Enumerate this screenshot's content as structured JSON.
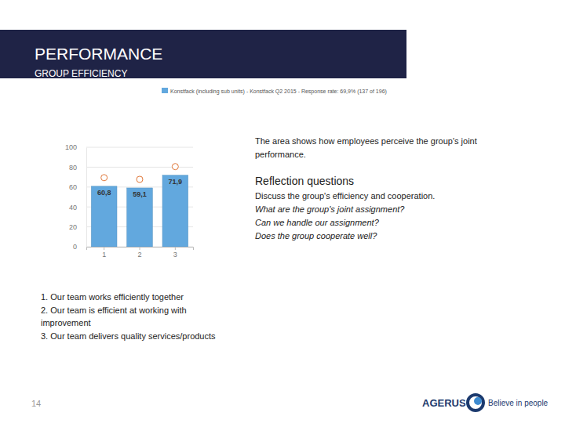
{
  "slide": {
    "header": {
      "title": "PERFORMANCE",
      "subtitle": "GROUP EFFICIENCY"
    },
    "description": [
      "The area shows how employees perceive the group's joint",
      "performance."
    ],
    "reflection": {
      "title": "Reflection questions",
      "lines": [
        "Discuss the group's efficiency and cooperation.",
        "What are the group's joint assignment?",
        "Can we handle our assignment?",
        "Does the group cooperate well?"
      ]
    },
    "list": [
      [
        "1. Our team works efficiently together"
      ],
      [
        "2. Our team is efficient at working with",
        "improvement"
      ],
      [
        "3. Our team delivers quality services/products"
      ]
    ],
    "page_number": "14",
    "logo": {
      "brand": "AGERUS",
      "tagline": "Believe in people"
    }
  },
  "chart_data": {
    "type": "bar",
    "categories": [
      "1",
      "2",
      "3"
    ],
    "series": [
      {
        "name": "Konstfack (including sub units) - Konstfack Q2 2015 - Response rate: 69,9% (137 of 196)",
        "color": "#62a8de",
        "values": [
          60.8,
          59.1,
          71.9
        ],
        "value_labels": [
          "60,8",
          "59,1",
          "71,9"
        ]
      }
    ],
    "ylim": [
      0,
      100
    ],
    "yticks": [
      0,
      20,
      40,
      60,
      80,
      100
    ],
    "grid": true,
    "data_labels": true
  }
}
